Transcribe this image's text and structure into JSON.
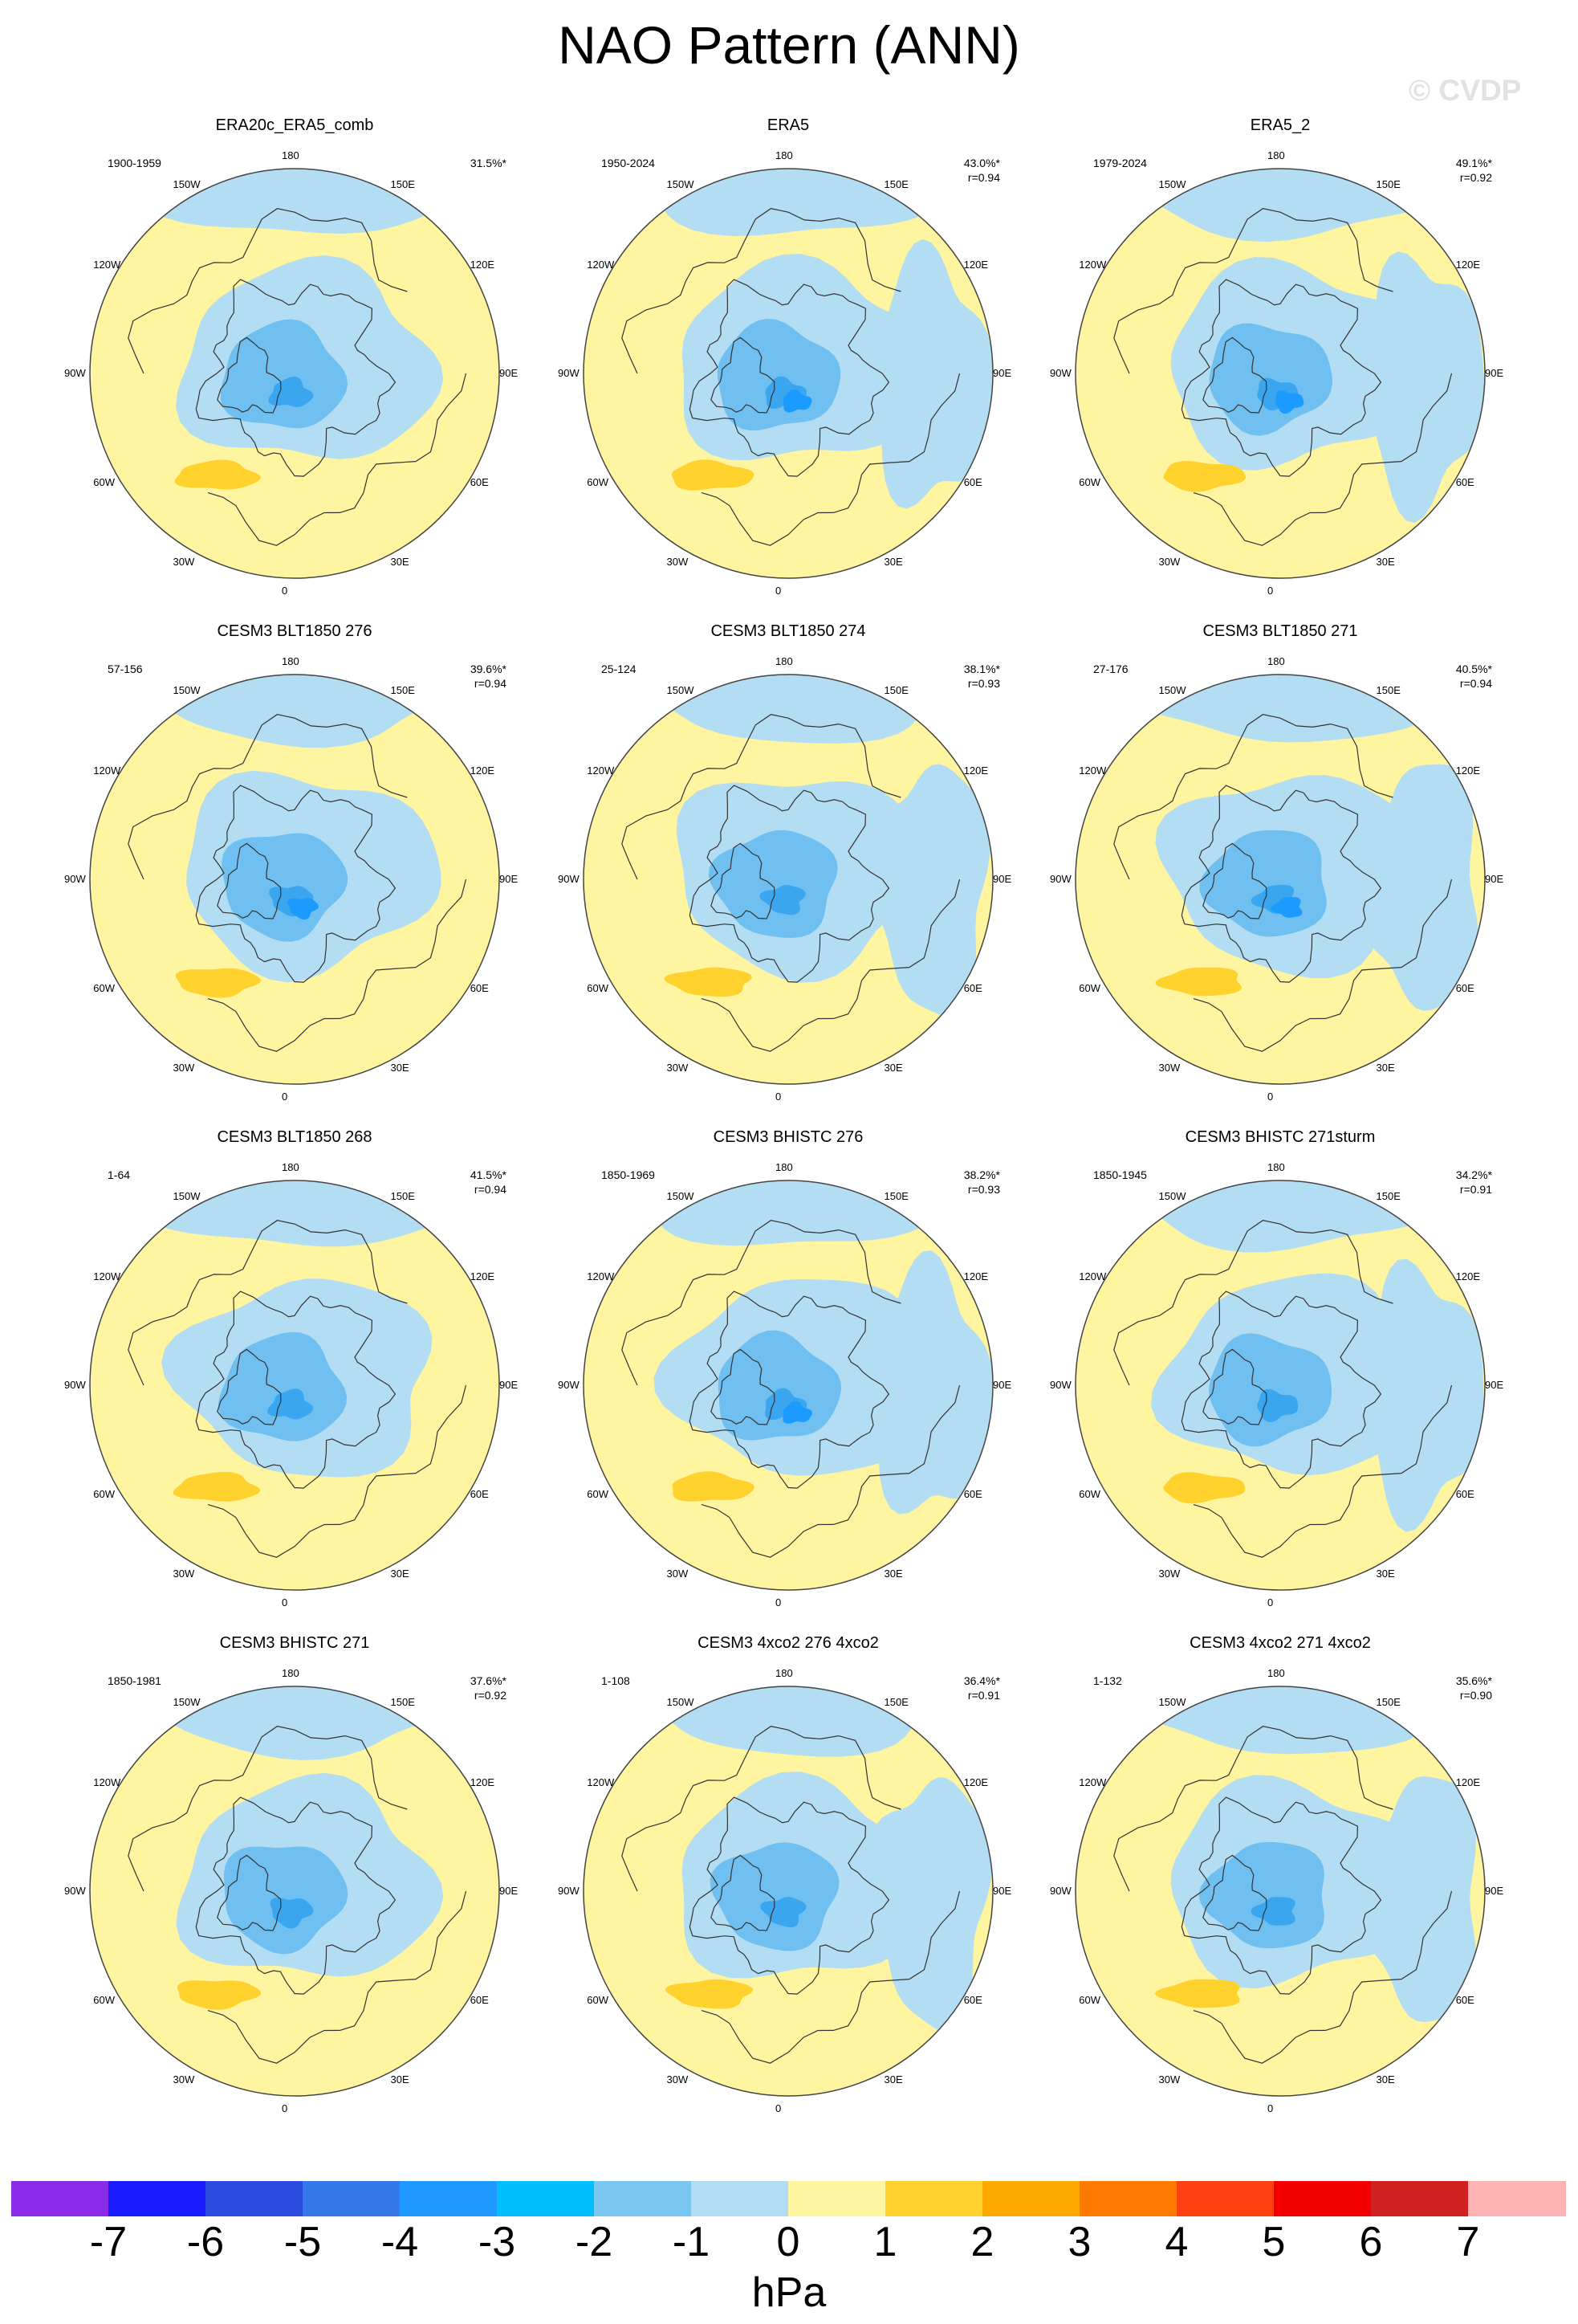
{
  "title": "NAO Pattern (ANN)",
  "watermark": "© CVDP",
  "colors": {
    "pos1": "#fff4a0",
    "pos2": "#ffd22e",
    "neg1": "#b3ddf2",
    "neg2": "#6fbff0",
    "neg3": "#3aa6f0",
    "neg4": "#1c9bff",
    "coast": "#333333"
  },
  "lon_labels": [
    "180",
    "150E",
    "120E",
    "90E",
    "60E",
    "30E",
    "0",
    "30W",
    "60W",
    "90W",
    "120W",
    "150W"
  ],
  "panels": [
    {
      "title": "ERA20c_ERA5_comb",
      "years": "1900-1959",
      "pct": "31.5%*",
      "r": "",
      "min_level": -3,
      "max_level": 1
    },
    {
      "title": "ERA5",
      "years": "1950-2024",
      "pct": "43.0%*",
      "r": "r=0.94",
      "min_level": -4,
      "max_level": 1
    },
    {
      "title": "ERA5_2",
      "years": "1979-2024",
      "pct": "49.1%*",
      "r": "r=0.92",
      "min_level": -4,
      "max_level": 2
    },
    {
      "title": "CESM3 BLT1850 276",
      "years": "57-156",
      "pct": "39.6%*",
      "r": "r=0.94",
      "min_level": -4,
      "max_level": 2
    },
    {
      "title": "CESM3 BLT1850 274",
      "years": "25-124",
      "pct": "38.1%*",
      "r": "r=0.93",
      "min_level": -3,
      "max_level": 2
    },
    {
      "title": "CESM3 BLT1850 271",
      "years": "27-176",
      "pct": "40.5%*",
      "r": "r=0.94",
      "min_level": -4,
      "max_level": 2
    },
    {
      "title": "CESM3 BLT1850 268",
      "years": "1-64",
      "pct": "41.5%*",
      "r": "r=0.94",
      "min_level": -3,
      "max_level": 2
    },
    {
      "title": "CESM3 BHISTC 276",
      "years": "1850-1969",
      "pct": "38.2%*",
      "r": "r=0.93",
      "min_level": -4,
      "max_level": 2
    },
    {
      "title": "CESM3 BHISTC 271sturm",
      "years": "1850-1945",
      "pct": "34.2%*",
      "r": "r=0.91",
      "min_level": -3,
      "max_level": 2
    },
    {
      "title": "CESM3 BHISTC 271",
      "years": "1850-1981",
      "pct": "37.6%*",
      "r": "r=0.92",
      "min_level": -3,
      "max_level": 2
    },
    {
      "title": "CESM3 4xco2 276 4xco2",
      "years": "1-108",
      "pct": "36.4%*",
      "r": "r=0.91",
      "min_level": -3,
      "max_level": 2
    },
    {
      "title": "CESM3 4xco2 271 4xco2",
      "years": "1-132",
      "pct": "35.6%*",
      "r": "r=0.90",
      "min_level": -3,
      "max_level": 2
    }
  ],
  "colorbar": {
    "labels": [
      "-7",
      "-6",
      "-5",
      "-4",
      "-3",
      "-2",
      "-1",
      "0",
      "1",
      "2",
      "3",
      "4",
      "5",
      "6",
      "7"
    ],
    "colors": [
      "#8a2be8",
      "#1a1aff",
      "#2a4bdd",
      "#3478ea",
      "#1f99ff",
      "#00bfff",
      "#79c7f0",
      "#b3ddf2",
      "#fff4a0",
      "#ffd22e",
      "#ffaa00",
      "#ff7a00",
      "#ff4010",
      "#f20000",
      "#d02020",
      "#ffb4b4"
    ],
    "units": "hPa"
  }
}
